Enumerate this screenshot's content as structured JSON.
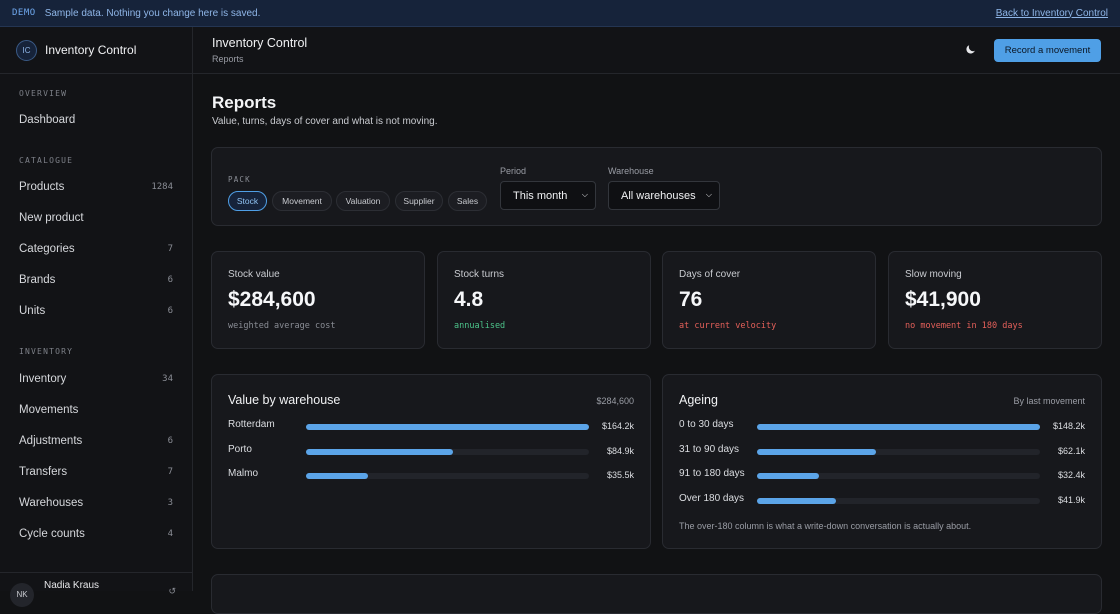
{
  "banner": {
    "tag": "DEMO",
    "message": "Sample data. Nothing you change here is saved.",
    "back_link": "Back to Inventory Control"
  },
  "brand": {
    "initials": "IC",
    "name": "Inventory Control"
  },
  "nav": {
    "overview_title": "OVERVIEW",
    "catalogue_title": "CATALOGUE",
    "inventory_title": "INVENTORY",
    "items": [
      {
        "label": "Dashboard",
        "count": ""
      },
      {
        "label": "Products",
        "count": "1284"
      },
      {
        "label": "New product",
        "count": ""
      },
      {
        "label": "Categories",
        "count": "7"
      },
      {
        "label": "Brands",
        "count": "6"
      },
      {
        "label": "Units",
        "count": "6"
      },
      {
        "label": "Inventory",
        "count": "34"
      },
      {
        "label": "Movements",
        "count": ""
      },
      {
        "label": "Adjustments",
        "count": "6"
      },
      {
        "label": "Transfers",
        "count": "7"
      },
      {
        "label": "Warehouses",
        "count": "3"
      },
      {
        "label": "Cycle counts",
        "count": "4"
      }
    ]
  },
  "user": {
    "initials": "NK",
    "name": "Nadia Kraus"
  },
  "topbar": {
    "title": "Inventory Control",
    "subtitle": "Reports",
    "record_button": "Record a movement"
  },
  "page": {
    "title": "Reports",
    "subtitle": "Value, turns, days of cover and what is not moving."
  },
  "filters": {
    "pack_label": "PACK",
    "packs": [
      "Stock",
      "Movement",
      "Valuation",
      "Supplier",
      "Sales"
    ],
    "active_pack": "Stock",
    "period_label": "Period",
    "period_value": "This month",
    "warehouse_label": "Warehouse",
    "warehouse_value": "All warehouses"
  },
  "kpis": [
    {
      "label": "Stock value",
      "value": "$284,600",
      "note": "weighted average cost",
      "note_color": "#8a8d95"
    },
    {
      "label": "Stock turns",
      "value": "4.8",
      "note": "annualised",
      "note_color": "#4cc38a"
    },
    {
      "label": "Days of cover",
      "value": "76",
      "note": "at current velocity",
      "note_color": "#e5605a"
    },
    {
      "label": "Slow moving",
      "value": "$41,900",
      "note": "no movement in 180 days",
      "note_color": "#e5605a"
    }
  ],
  "value_by_warehouse": {
    "title": "Value by warehouse",
    "total": "$284,600",
    "rows": [
      {
        "label": "Rotterdam",
        "value": "$164.2k",
        "fraction": 1.0
      },
      {
        "label": "Porto",
        "value": "$84.9k",
        "fraction": 0.52
      },
      {
        "label": "Malmo",
        "value": "$35.5k",
        "fraction": 0.22
      }
    ]
  },
  "ageing": {
    "title": "Ageing",
    "meta": "By last movement",
    "rows": [
      {
        "label": "0 to 30 days",
        "value": "$148.2k",
        "fraction": 1.0
      },
      {
        "label": "31 to 90 days",
        "value": "$62.1k",
        "fraction": 0.42
      },
      {
        "label": "91 to 180 days",
        "value": "$32.4k",
        "fraction": 0.22
      },
      {
        "label": "Over 180 days",
        "value": "$41.9k",
        "fraction": 0.28
      }
    ],
    "footnote": "The over-180 column is what a write-down conversation is actually about."
  }
}
